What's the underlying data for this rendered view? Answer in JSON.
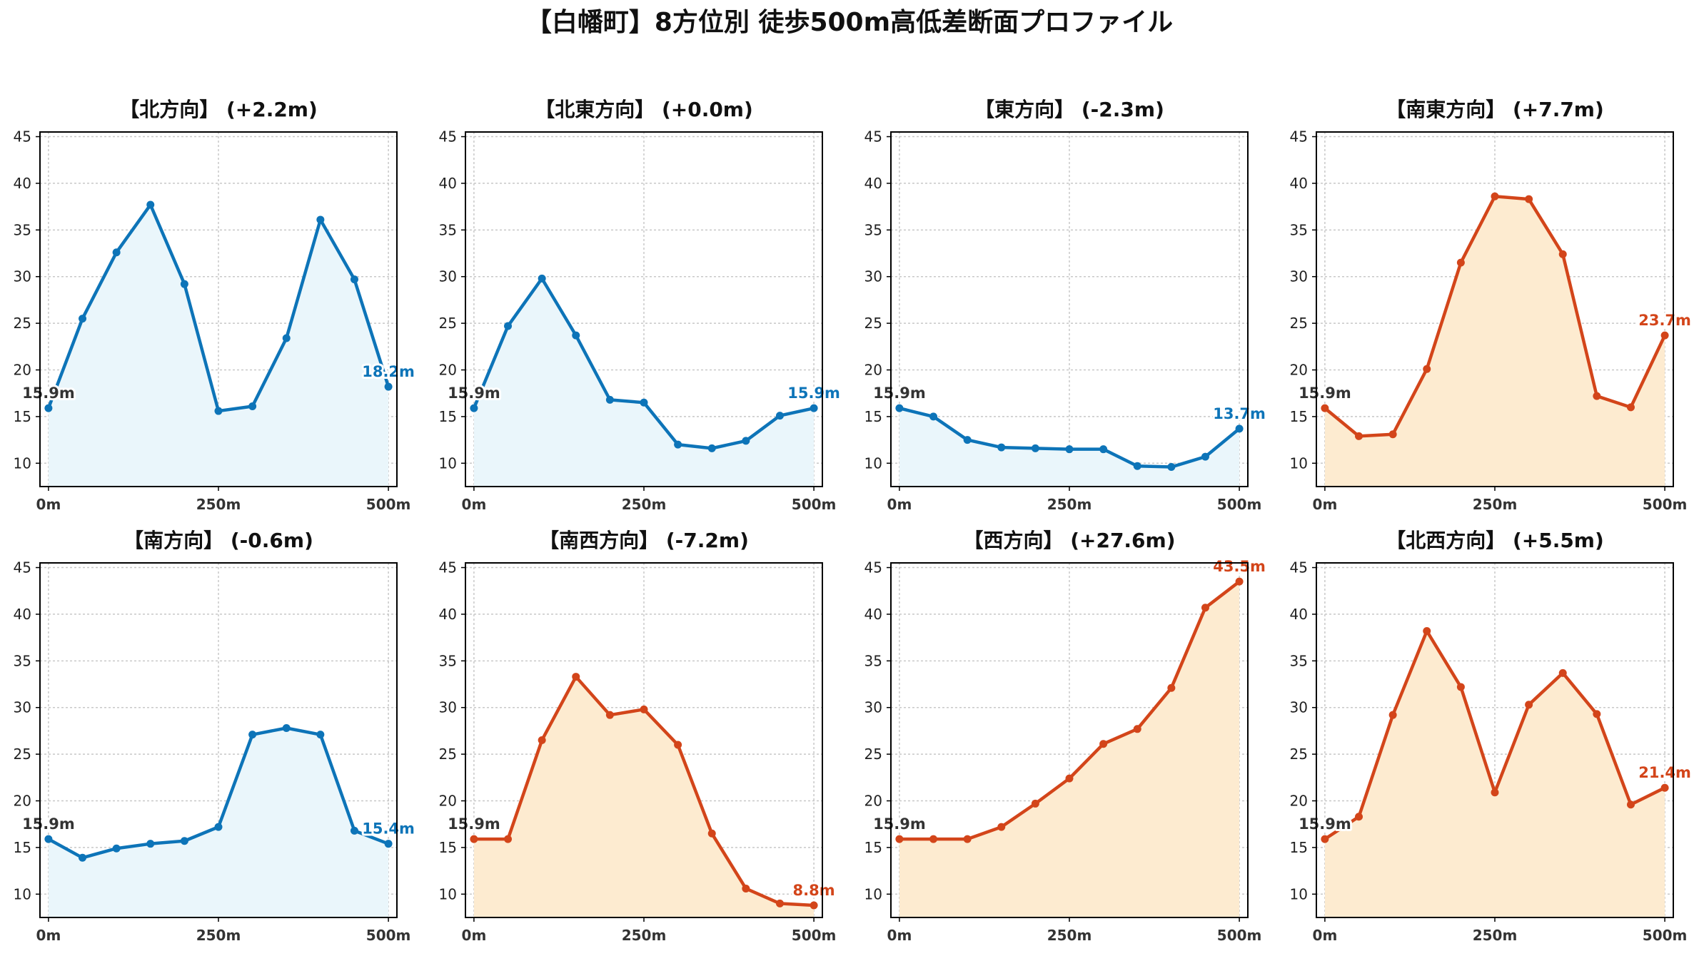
{
  "title": "【白幡町】8方位別 徒歩500m高低差断面プロファイル",
  "colors": {
    "up_line": "#d3451a",
    "up_fill": "#fdebd0",
    "down_line": "#0d74b8",
    "down_fill": "#eaf6fb",
    "grid": "#c8c8c8"
  },
  "chart_data": [
    {
      "type": "area",
      "title": "【北方向】 (+2.2m)",
      "trend": "down",
      "x": [
        0,
        50,
        100,
        150,
        200,
        250,
        300,
        350,
        400,
        450,
        500
      ],
      "values": [
        15.9,
        25.5,
        32.6,
        37.7,
        29.2,
        15.6,
        16.1,
        23.4,
        36.1,
        29.7,
        18.2
      ],
      "start_label": "15.9m",
      "end_label": "18.2m",
      "ylim": [
        7.5,
        45.5
      ],
      "yticks": [
        10,
        15,
        20,
        25,
        30,
        35,
        40,
        45
      ],
      "xticks": [
        "0m",
        "250m",
        "500m"
      ],
      "grid": true
    },
    {
      "type": "area",
      "title": "【北東方向】 (+0.0m)",
      "trend": "down",
      "x": [
        0,
        50,
        100,
        150,
        200,
        250,
        300,
        350,
        400,
        450,
        500
      ],
      "values": [
        15.9,
        24.7,
        29.8,
        23.7,
        16.8,
        16.5,
        12.0,
        11.6,
        12.4,
        15.1,
        15.9
      ],
      "start_label": "15.9m",
      "end_label": "15.9m",
      "ylim": [
        7.5,
        45.5
      ],
      "yticks": [
        10,
        15,
        20,
        25,
        30,
        35,
        40,
        45
      ],
      "xticks": [
        "0m",
        "250m",
        "500m"
      ],
      "grid": true
    },
    {
      "type": "area",
      "title": "【東方向】 (-2.3m)",
      "trend": "down",
      "x": [
        0,
        50,
        100,
        150,
        200,
        250,
        300,
        350,
        400,
        450,
        500
      ],
      "values": [
        15.9,
        15.0,
        12.5,
        11.7,
        11.6,
        11.5,
        11.5,
        9.7,
        9.6,
        10.7,
        13.7
      ],
      "start_label": "15.9m",
      "end_label": "13.7m",
      "ylim": [
        7.5,
        45.5
      ],
      "yticks": [
        10,
        15,
        20,
        25,
        30,
        35,
        40,
        45
      ],
      "xticks": [
        "0m",
        "250m",
        "500m"
      ],
      "grid": true
    },
    {
      "type": "area",
      "title": "【南東方向】 (+7.7m)",
      "trend": "up",
      "x": [
        0,
        50,
        100,
        150,
        200,
        250,
        300,
        350,
        400,
        450,
        500
      ],
      "values": [
        15.9,
        12.9,
        13.1,
        20.1,
        31.5,
        38.6,
        38.3,
        32.4,
        17.2,
        16.0,
        23.7
      ],
      "start_label": "15.9m",
      "end_label": "23.7m",
      "ylim": [
        7.5,
        45.5
      ],
      "yticks": [
        10,
        15,
        20,
        25,
        30,
        35,
        40,
        45
      ],
      "xticks": [
        "0m",
        "250m",
        "500m"
      ],
      "grid": true
    },
    {
      "type": "area",
      "title": "【南方向】 (-0.6m)",
      "trend": "down",
      "x": [
        0,
        50,
        100,
        150,
        200,
        250,
        300,
        350,
        400,
        450,
        500
      ],
      "values": [
        15.9,
        13.9,
        14.9,
        15.4,
        15.7,
        17.2,
        27.1,
        27.8,
        27.1,
        16.8,
        15.4
      ],
      "start_label": "15.9m",
      "end_label": "15.4m",
      "ylim": [
        7.5,
        45.5
      ],
      "yticks": [
        10,
        15,
        20,
        25,
        30,
        35,
        40,
        45
      ],
      "xticks": [
        "0m",
        "250m",
        "500m"
      ],
      "grid": true
    },
    {
      "type": "area",
      "title": "【南西方向】 (-7.2m)",
      "trend": "up",
      "x": [
        0,
        50,
        100,
        150,
        200,
        250,
        300,
        350,
        400,
        450,
        500
      ],
      "values": [
        15.9,
        15.9,
        26.5,
        33.3,
        29.2,
        29.8,
        26.0,
        16.5,
        10.6,
        9.0,
        8.8
      ],
      "start_label": "15.9m",
      "end_label": "8.8m",
      "ylim": [
        7.5,
        45.5
      ],
      "yticks": [
        10,
        15,
        20,
        25,
        30,
        35,
        40,
        45
      ],
      "xticks": [
        "0m",
        "250m",
        "500m"
      ],
      "grid": true
    },
    {
      "type": "area",
      "title": "【西方向】 (+27.6m)",
      "trend": "up",
      "x": [
        0,
        50,
        100,
        150,
        200,
        250,
        300,
        350,
        400,
        450,
        500
      ],
      "values": [
        15.9,
        15.9,
        15.9,
        17.2,
        19.7,
        22.4,
        26.1,
        27.7,
        32.1,
        40.7,
        43.5
      ],
      "start_label": "15.9m",
      "end_label": "43.5m",
      "ylim": [
        7.5,
        45.5
      ],
      "yticks": [
        10,
        15,
        20,
        25,
        30,
        35,
        40,
        45
      ],
      "xticks": [
        "0m",
        "250m",
        "500m"
      ],
      "grid": true
    },
    {
      "type": "area",
      "title": "【北西方向】 (+5.5m)",
      "trend": "up",
      "x": [
        0,
        50,
        100,
        150,
        200,
        250,
        300,
        350,
        400,
        450,
        500
      ],
      "values": [
        15.9,
        18.3,
        29.2,
        38.2,
        32.2,
        20.9,
        30.3,
        33.7,
        29.3,
        19.6,
        21.4
      ],
      "start_label": "15.9m",
      "end_label": "21.4m",
      "ylim": [
        7.5,
        45.5
      ],
      "yticks": [
        10,
        15,
        20,
        25,
        30,
        35,
        40,
        45
      ],
      "xticks": [
        "0m",
        "250m",
        "500m"
      ],
      "grid": true
    }
  ]
}
